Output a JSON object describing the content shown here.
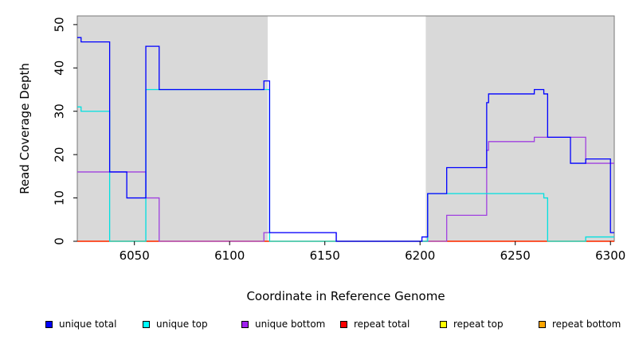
{
  "chart_data": {
    "type": "line",
    "xlabel": "Coordinate in Reference Genome",
    "ylabel": "Read Coverage Depth",
    "xlim": [
      6020,
      6302
    ],
    "ylim": [
      0,
      52
    ],
    "xticks": [
      6050,
      6100,
      6150,
      6200,
      6250,
      6300
    ],
    "yticks": [
      0,
      10,
      20,
      30,
      40,
      50
    ],
    "xtick_labels": [
      "6050",
      "6100",
      "6150",
      "6200",
      "6250",
      "6300"
    ],
    "ytick_labels": [
      "0",
      "10",
      "20",
      "30",
      "40",
      "50"
    ],
    "shaded_regions": [
      [
        6020,
        6120
      ],
      [
        6203,
        6302
      ]
    ],
    "series": [
      {
        "name": "unique total",
        "color": "#0000ff",
        "x": [
          6020,
          6022,
          6037,
          6046,
          6056,
          6063,
          6118,
          6121,
          6156,
          6201,
          6204,
          6214,
          6235,
          6236,
          6260,
          6265,
          6267,
          6279,
          6287,
          6300
        ],
        "y": [
          47,
          46,
          16,
          10,
          45,
          35,
          37,
          2,
          0,
          1,
          11,
          17,
          32,
          34,
          35,
          34,
          24,
          18,
          19,
          2
        ]
      },
      {
        "name": "unique top",
        "color": "#00e0e0",
        "x": [
          6020,
          6022,
          6037,
          6056,
          6121,
          6156,
          6201,
          6204,
          6265,
          6267,
          6287
        ],
        "y": [
          31,
          30,
          0,
          35,
          0,
          0,
          0,
          11,
          10,
          0,
          1
        ]
      },
      {
        "name": "unique bottom",
        "color": "#a040e0",
        "x": [
          6020,
          6056,
          6063,
          6118,
          6121,
          6156,
          6214,
          6235,
          6236,
          6260,
          6287
        ],
        "y": [
          16,
          10,
          0,
          2,
          2,
          0,
          6,
          21,
          23,
          24,
          18
        ]
      },
      {
        "name": "repeat total",
        "color": "#ff0000",
        "x": [
          6020,
          6302
        ],
        "y": [
          0,
          0
        ]
      },
      {
        "name": "repeat top",
        "color": "#ffff00",
        "x": [
          6020,
          6302
        ],
        "y": [
          0,
          0
        ]
      },
      {
        "name": "repeat bottom",
        "color": "#ffa500",
        "x": [
          6020,
          6302
        ],
        "y": [
          0,
          0
        ]
      }
    ],
    "legend_placement": "bottom"
  },
  "legend": [
    {
      "label": "unique total",
      "color": "#0000ff"
    },
    {
      "label": "unique top",
      "color": "#00ffff"
    },
    {
      "label": "unique bottom",
      "color": "#a020f0"
    },
    {
      "label": "repeat total",
      "color": "#ff0000"
    },
    {
      "label": "repeat top",
      "color": "#ffff00"
    },
    {
      "label": "repeat bottom",
      "color": "#ffa500"
    }
  ]
}
